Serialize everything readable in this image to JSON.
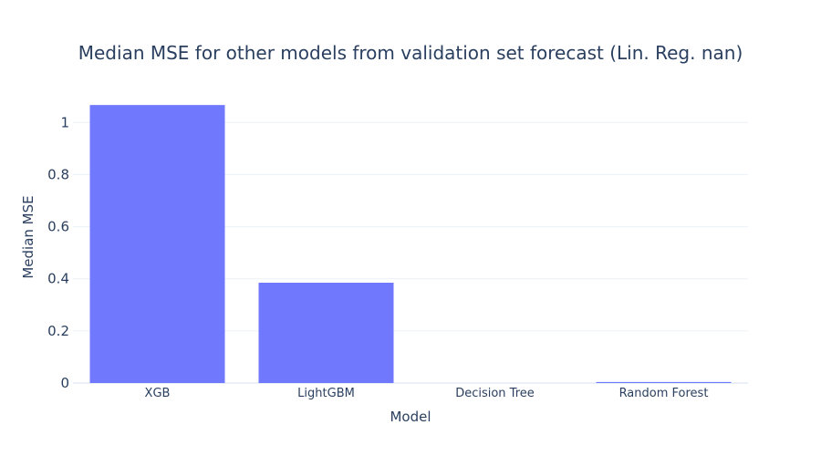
{
  "chart_data": {
    "type": "bar",
    "title": "Median MSE for other models from validation set forecast (Lin. Reg. nan)",
    "xlabel": "Model",
    "ylabel": "Median MSE",
    "categories": [
      "XGB",
      "LightGBM",
      "Decision Tree",
      "Random Forest"
    ],
    "values": [
      1.067,
      0.385,
      0.0,
      0.004
    ],
    "ylim": [
      0,
      1.12
    ],
    "yticks": [
      0,
      0.2,
      0.4,
      0.6,
      0.8,
      1
    ],
    "ytick_labels": [
      "0",
      "0.2",
      "0.4",
      "0.6",
      "0.8",
      "1"
    ],
    "grid": true,
    "legend": "none",
    "colors": {
      "bar": "#7079fe",
      "grid": "#ebf0f8",
      "text": "#2a3f5f",
      "background": "#ffffff"
    }
  }
}
